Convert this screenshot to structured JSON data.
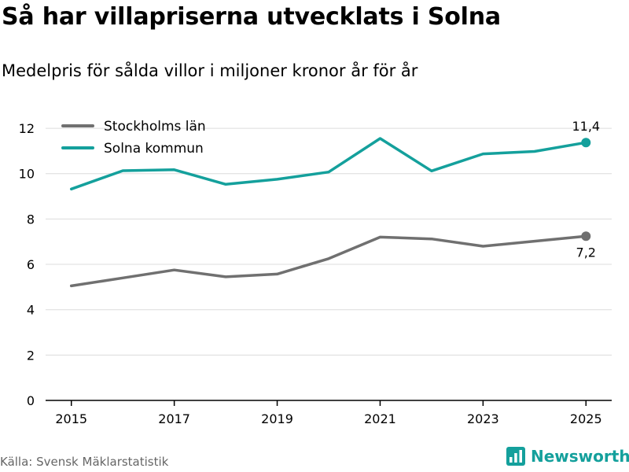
{
  "header": {
    "title": "Så har villapriserna utvecklats i Solna",
    "subtitle": "Medelpris för sålda villor i miljoner kronor år för år"
  },
  "footer": {
    "source": "Källa: Svensk Mäklarstatistik",
    "brand": "Newsworthy"
  },
  "colors": {
    "stockholm": "#707070",
    "solna": "#14a09c",
    "grid": "#dcdcdc",
    "axis": "#000000"
  },
  "chart_data": {
    "type": "line",
    "title": "Så har villapriserna utvecklats i Solna",
    "xlabel": "",
    "ylabel": "Medelpris för sålda villor i miljoner kronor år för år",
    "x": [
      2015,
      2016,
      2017,
      2018,
      2019,
      2020,
      2021,
      2022,
      2023,
      2024,
      2025
    ],
    "xlim": [
      2014.5,
      2025.5
    ],
    "ylim": [
      0,
      12.8
    ],
    "xticks": [
      2015,
      2017,
      2019,
      2021,
      2023,
      2025
    ],
    "xtick_labels": [
      "2015",
      "2017",
      "2019",
      "2021",
      "2023",
      "2025"
    ],
    "yticks": [
      0,
      2,
      4,
      6,
      8,
      10,
      12
    ],
    "ytick_labels": [
      "0",
      "2",
      "4",
      "6",
      "8",
      "10",
      "12"
    ],
    "grid": true,
    "legend_position": "top-left",
    "series": [
      {
        "name": "Stockholms län",
        "key": "stockholm",
        "values": [
          5.05,
          5.4,
          5.75,
          5.45,
          5.57,
          6.25,
          7.2,
          7.12,
          6.8,
          7.02,
          7.24
        ],
        "end_label": "7,2",
        "end_label_position": "below"
      },
      {
        "name": "Solna kommun",
        "key": "solna",
        "values": [
          9.32,
          10.13,
          10.17,
          9.53,
          9.75,
          10.07,
          11.55,
          10.12,
          10.87,
          10.98,
          11.37
        ],
        "end_label": "11,4",
        "end_label_position": "above"
      }
    ]
  }
}
